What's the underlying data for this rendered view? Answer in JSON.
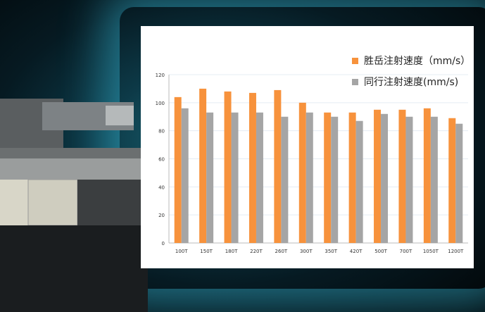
{
  "chart_data": {
    "type": "bar",
    "categories": [
      "100T",
      "150T",
      "180T",
      "220T",
      "260T",
      "300T",
      "350T",
      "420T",
      "500T",
      "700T",
      "1050T",
      "1200T"
    ],
    "series": [
      {
        "name": "胜岳注射速度（mm/s）",
        "color": "#f7923c",
        "values": [
          104,
          110,
          108,
          107,
          109,
          100,
          93,
          93,
          95,
          95,
          96,
          89
        ]
      },
      {
        "name": "同行注射速度(mm/s)",
        "color": "#a5a5a5",
        "values": [
          96,
          93,
          93,
          93,
          90,
          93,
          90,
          87,
          92,
          90,
          90,
          85
        ]
      }
    ],
    "ylim": [
      0,
      120
    ],
    "yticks": [
      0,
      20,
      40,
      60,
      80,
      100,
      120
    ],
    "grid": true,
    "legend": "top-right"
  }
}
